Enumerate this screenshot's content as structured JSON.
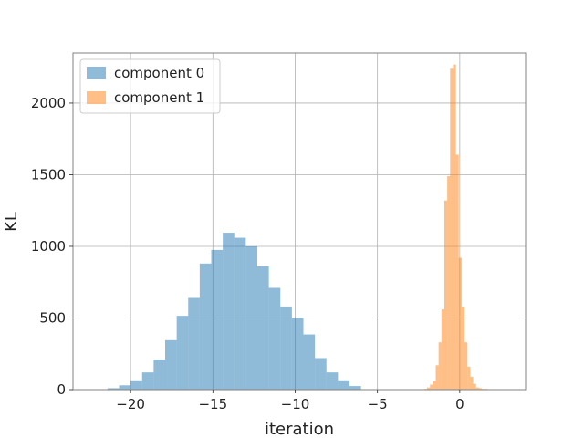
{
  "chart_data": {
    "type": "histogram",
    "title": "",
    "xlabel": "iteration",
    "ylabel": "KL",
    "xlim": [
      -23.5,
      4.0
    ],
    "ylim": [
      0,
      2350
    ],
    "xticks": [
      -20,
      -15,
      -10,
      -5,
      0
    ],
    "xtick_labels": [
      "−20",
      "−15",
      "−10",
      "−5",
      "0"
    ],
    "yticks": [
      0,
      500,
      1000,
      1500,
      2000
    ],
    "ytick_labels": [
      "0",
      "500",
      "1000",
      "1500",
      "2000"
    ],
    "grid": true,
    "legend_position": "top-left",
    "series": [
      {
        "name": "component 0",
        "color": "#1f77b4",
        "alpha": 0.5,
        "bin_edges": [
          -21.4,
          -20.7,
          -20.0,
          -19.3,
          -18.6,
          -17.9,
          -17.2,
          -16.5,
          -15.8,
          -15.1,
          -14.4,
          -13.7,
          -13.0,
          -12.3,
          -11.6,
          -10.9,
          -10.2,
          -9.5,
          -8.8,
          -8.1,
          -7.4,
          -6.7,
          -6.0
        ],
        "counts": [
          10,
          30,
          65,
          120,
          210,
          345,
          515,
          640,
          880,
          975,
          1095,
          1060,
          1000,
          860,
          710,
          580,
          500,
          385,
          220,
          120,
          65,
          25
        ]
      },
      {
        "name": "component 1",
        "color": "#ff7f0e",
        "alpha": 0.5,
        "bin_edges": [
          -2.16,
          -1.985,
          -1.81,
          -1.635,
          -1.46,
          -1.285,
          -1.11,
          -0.935,
          -0.76,
          -0.585,
          -0.41,
          -0.235,
          -0.06,
          0.115,
          0.29,
          0.465,
          0.64,
          0.815,
          0.99,
          1.165,
          1.34,
          1.515,
          1.69,
          1.865,
          2.04
        ],
        "counts": [
          5,
          15,
          35,
          60,
          170,
          330,
          560,
          1320,
          1490,
          2240,
          2270,
          1640,
          920,
          580,
          330,
          160,
          90,
          40,
          15,
          10,
          5,
          5,
          3,
          2
        ]
      }
    ]
  }
}
